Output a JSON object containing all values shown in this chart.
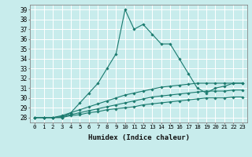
{
  "xlabel": "Humidex (Indice chaleur)",
  "ylabel": "",
  "bg_color": "#c8ecec",
  "grid_color": "#ffffff",
  "line_color": "#1a7a6e",
  "xlim": [
    -0.5,
    23.5
  ],
  "ylim": [
    27.5,
    39.5
  ],
  "xticks": [
    0,
    1,
    2,
    3,
    4,
    5,
    6,
    7,
    8,
    9,
    10,
    11,
    12,
    13,
    14,
    15,
    16,
    17,
    18,
    19,
    20,
    21,
    22,
    23
  ],
  "yticks": [
    28,
    29,
    30,
    31,
    32,
    33,
    34,
    35,
    36,
    37,
    38,
    39
  ],
  "series": [
    [
      28.0,
      28.0,
      28.0,
      28.0,
      28.5,
      29.5,
      30.5,
      31.5,
      33.0,
      34.5,
      39.0,
      37.0,
      37.5,
      36.5,
      35.5,
      35.5,
      34.0,
      32.5,
      31.0,
      30.5,
      31.0,
      31.2,
      31.5,
      31.5
    ],
    [
      28.0,
      28.0,
      28.0,
      28.2,
      28.5,
      28.8,
      29.1,
      29.4,
      29.7,
      30.0,
      30.3,
      30.5,
      30.7,
      30.9,
      31.1,
      31.2,
      31.3,
      31.4,
      31.5,
      31.5,
      31.5,
      31.5,
      31.5,
      31.5
    ],
    [
      28.0,
      28.0,
      28.0,
      28.1,
      28.3,
      28.5,
      28.7,
      28.9,
      29.1,
      29.3,
      29.5,
      29.7,
      29.9,
      30.1,
      30.2,
      30.3,
      30.4,
      30.5,
      30.6,
      30.7,
      30.7,
      30.7,
      30.8,
      30.8
    ],
    [
      28.0,
      28.0,
      28.0,
      28.0,
      28.2,
      28.3,
      28.5,
      28.6,
      28.8,
      28.9,
      29.0,
      29.1,
      29.3,
      29.4,
      29.5,
      29.6,
      29.7,
      29.8,
      29.9,
      30.0,
      30.0,
      30.0,
      30.1,
      30.1
    ]
  ]
}
